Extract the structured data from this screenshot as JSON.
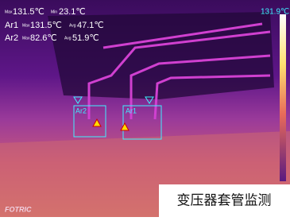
{
  "readout": {
    "max_label": "Max",
    "max": "131.5℃",
    "min_label": "Min",
    "min": "23.1℃"
  },
  "areas": [
    {
      "name": "Ar1",
      "max_label": "Max",
      "max": "131.5℃",
      "avg_label": "Avg",
      "avg": "47.1℃"
    },
    {
      "name": "Ar2",
      "max_label": "Max",
      "max": "82.6℃",
      "avg_label": "Avg",
      "avg": "51.9℃"
    }
  ],
  "scale_top": "131.9℃",
  "logo": "FOTRIC",
  "caption": "变压器套管监测"
}
